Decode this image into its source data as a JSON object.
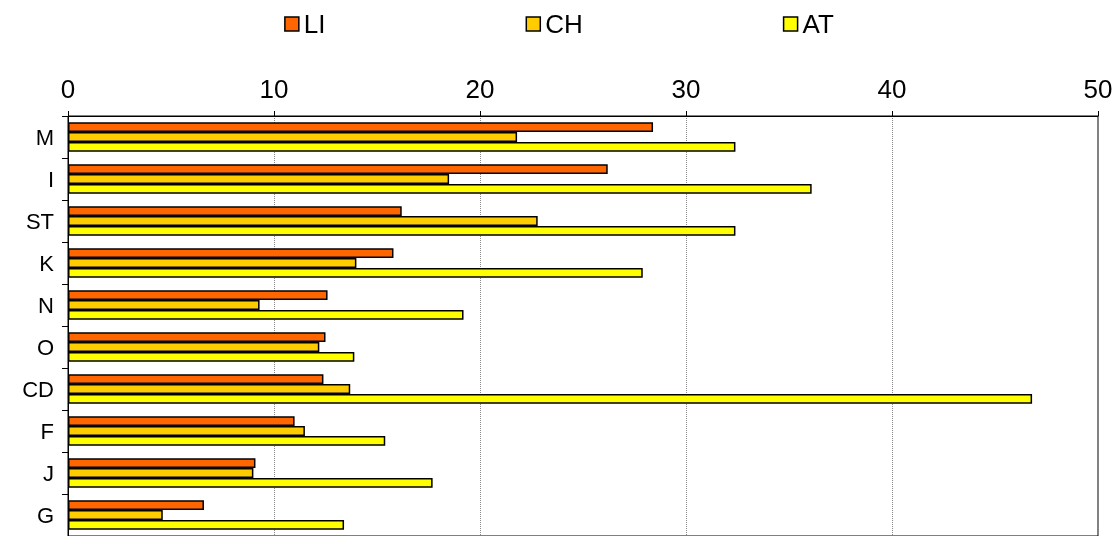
{
  "chart_data": {
    "type": "bar",
    "orientation": "horizontal",
    "categories": [
      "M",
      "I",
      "ST",
      "K",
      "N",
      "O",
      "CD",
      "F",
      "J",
      "G"
    ],
    "series": [
      {
        "name": "LI",
        "color": "#ff6600",
        "values": [
          28.4,
          26.2,
          16.2,
          15.8,
          12.6,
          12.5,
          12.4,
          11.0,
          9.1,
          6.6
        ]
      },
      {
        "name": "CH",
        "color": "#ffcc00",
        "values": [
          21.8,
          18.5,
          22.8,
          14.0,
          9.3,
          12.2,
          13.7,
          11.5,
          9.0,
          4.6
        ]
      },
      {
        "name": "AT",
        "color": "#ffff00",
        "values": [
          32.4,
          36.1,
          32.4,
          27.9,
          19.2,
          13.9,
          46.8,
          15.4,
          17.7,
          13.4
        ]
      }
    ],
    "xlim": [
      0,
      50
    ],
    "xticks": [
      0,
      10,
      20,
      30,
      40,
      50
    ],
    "grid": "x",
    "legend": "top"
  }
}
